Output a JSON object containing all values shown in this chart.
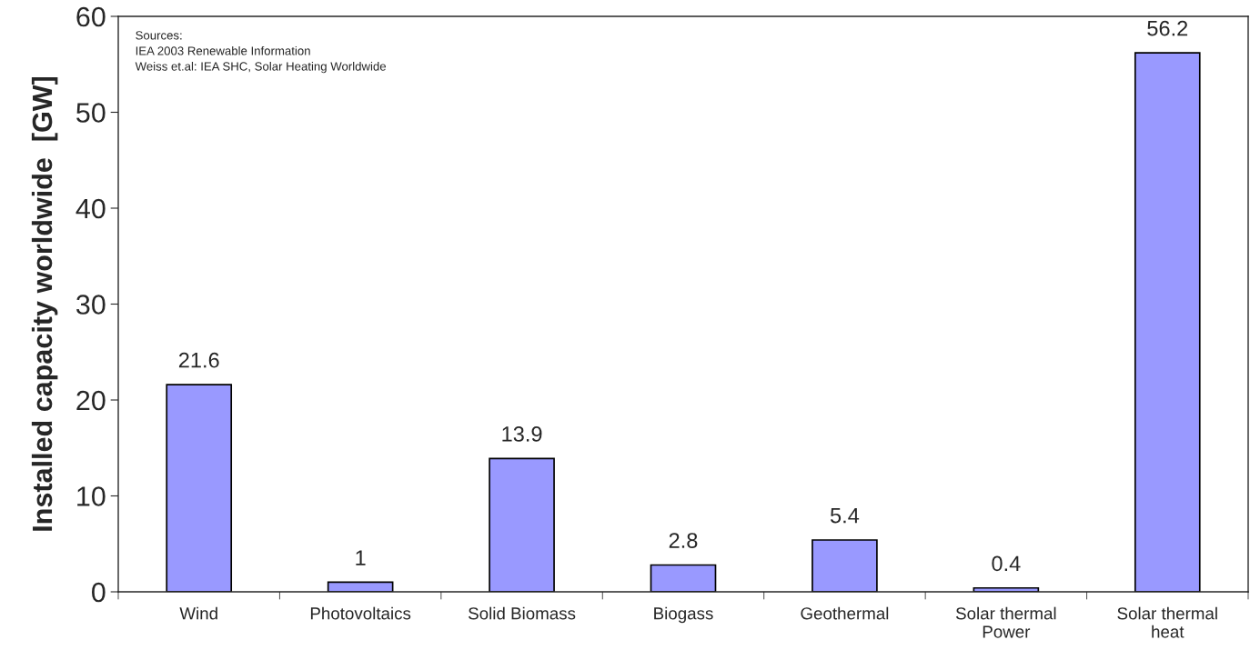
{
  "chart_data": {
    "type": "bar",
    "ylabel": "Installed capacity worldwide  [GW]",
    "categories": [
      "Wind",
      "Photovoltaics",
      "Solid Biomass",
      "Biogass",
      "Geothermal",
      "Solar thermal\nPower",
      "Solar thermal\nheat"
    ],
    "values": [
      21.6,
      1,
      13.9,
      2.8,
      5.4,
      0.4,
      56.2
    ],
    "color": "#9999ff",
    "ylim": [
      0,
      60
    ],
    "yticks": [
      0,
      10,
      20,
      30,
      40,
      50,
      60
    ],
    "data_labels": true,
    "grid": false,
    "legend": false,
    "annotations": [
      "Sources:\nIEA 2003 Renewable Information\nWeiss et.al: IEA SHC, Solar Heating Worldwide"
    ]
  }
}
